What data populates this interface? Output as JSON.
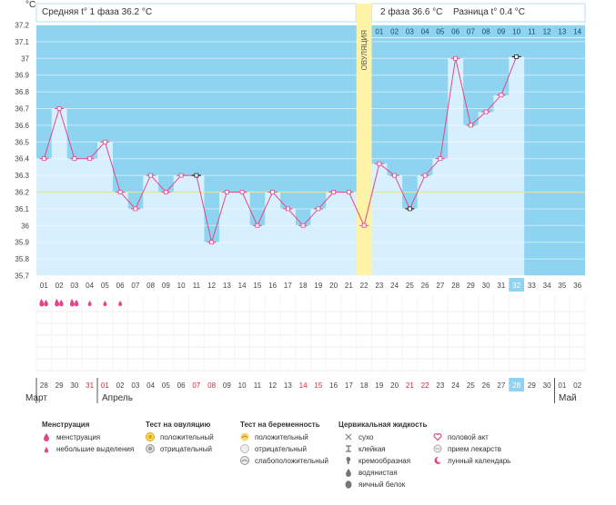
{
  "chart_data": {
    "type": "line",
    "y_unit": "°C",
    "ylim": [
      35.7,
      37.2
    ],
    "yticks": [
      "37.2",
      "37.1",
      "37",
      "36.9",
      "36.8",
      "36.7",
      "36.6",
      "36.5",
      "36.4",
      "36.3",
      "36.2",
      "36.1",
      "36",
      "35.9",
      "35.8",
      "35.7"
    ],
    "phase1_text": "Средняя t° 1 фаза 36.2 °C",
    "phase2_text": "2 фаза 36.6 °C",
    "diff_text": "Разница t° 0.4 °C",
    "ovulation_label": "ОВУЛЯЦИЯ",
    "ovulation_day": 22,
    "coverline": 36.2,
    "post_ovulation_days": [
      "01",
      "02",
      "03",
      "04",
      "05",
      "06",
      "07",
      "08",
      "09",
      "10",
      "11",
      "12",
      "13",
      "14"
    ],
    "cycle_days": [
      "01",
      "02",
      "03",
      "04",
      "05",
      "06",
      "07",
      "08",
      "09",
      "10",
      "11",
      "12",
      "13",
      "14",
      "15",
      "16",
      "17",
      "18",
      "19",
      "20",
      "21",
      "22",
      "23",
      "24",
      "25",
      "26",
      "27",
      "28",
      "29",
      "30",
      "31",
      "32",
      "33",
      "34",
      "35",
      "36"
    ],
    "current_day": "32",
    "temperatures": [
      36.4,
      36.7,
      36.4,
      36.4,
      36.5,
      36.2,
      36.1,
      36.3,
      36.2,
      36.3,
      36.3,
      35.9,
      36.2,
      36.2,
      36.0,
      36.2,
      36.1,
      36.0,
      36.1,
      36.2,
      36.2,
      36.0,
      36.37,
      36.3,
      36.1,
      36.3,
      36.4,
      37.0,
      36.6,
      36.68,
      36.78,
      37.01
    ],
    "special_markers": [
      11,
      25,
      32
    ],
    "menstruation": [
      "heavy",
      "heavy",
      "heavy",
      "light",
      "light",
      "light"
    ],
    "dates": [
      "28",
      "29",
      "30",
      "31",
      "01",
      "02",
      "03",
      "04",
      "05",
      "06",
      "07",
      "08",
      "09",
      "10",
      "11",
      "12",
      "13",
      "14",
      "15",
      "16",
      "17",
      "18",
      "19",
      "20",
      "21",
      "22",
      "23",
      "24",
      "25",
      "26",
      "27",
      "28",
      "29",
      "30",
      "01",
      "02"
    ],
    "red_dates": [
      3,
      4,
      10,
      11,
      17,
      18,
      24,
      25,
      31
    ],
    "months": [
      {
        "name": "Март",
        "index": 0
      },
      {
        "name": "Апрель",
        "index": 4
      },
      {
        "name": "Май",
        "index": 34
      }
    ],
    "colors": {
      "band": "#8ed3f0",
      "bar": "#d8f0fd",
      "line": "#e0488a",
      "ovulation": "#fff3a8",
      "coverline": "#dfe69a",
      "future": "#8ed3f0",
      "current_day": "#8ed3f0"
    }
  },
  "legend": {
    "menstruation": {
      "title": "Менструация",
      "items": [
        "менструация",
        "небольшие выделения"
      ]
    },
    "ovulation_test": {
      "title": "Тест на овуляцию",
      "items": [
        "положительный",
        "отрицательный"
      ]
    },
    "pregnancy_test": {
      "title": "Тест на беременность",
      "items": [
        "положительный",
        "отрицательный",
        "слабоположительный"
      ]
    },
    "cervical": {
      "title": "Цервикальная жидкость",
      "items": [
        "сухо",
        "клейкая",
        "кремообразная",
        "водянистая",
        "яичный белок"
      ]
    },
    "other": {
      "items": [
        "половой акт",
        "прием лекарств",
        "лунный календарь"
      ]
    }
  }
}
